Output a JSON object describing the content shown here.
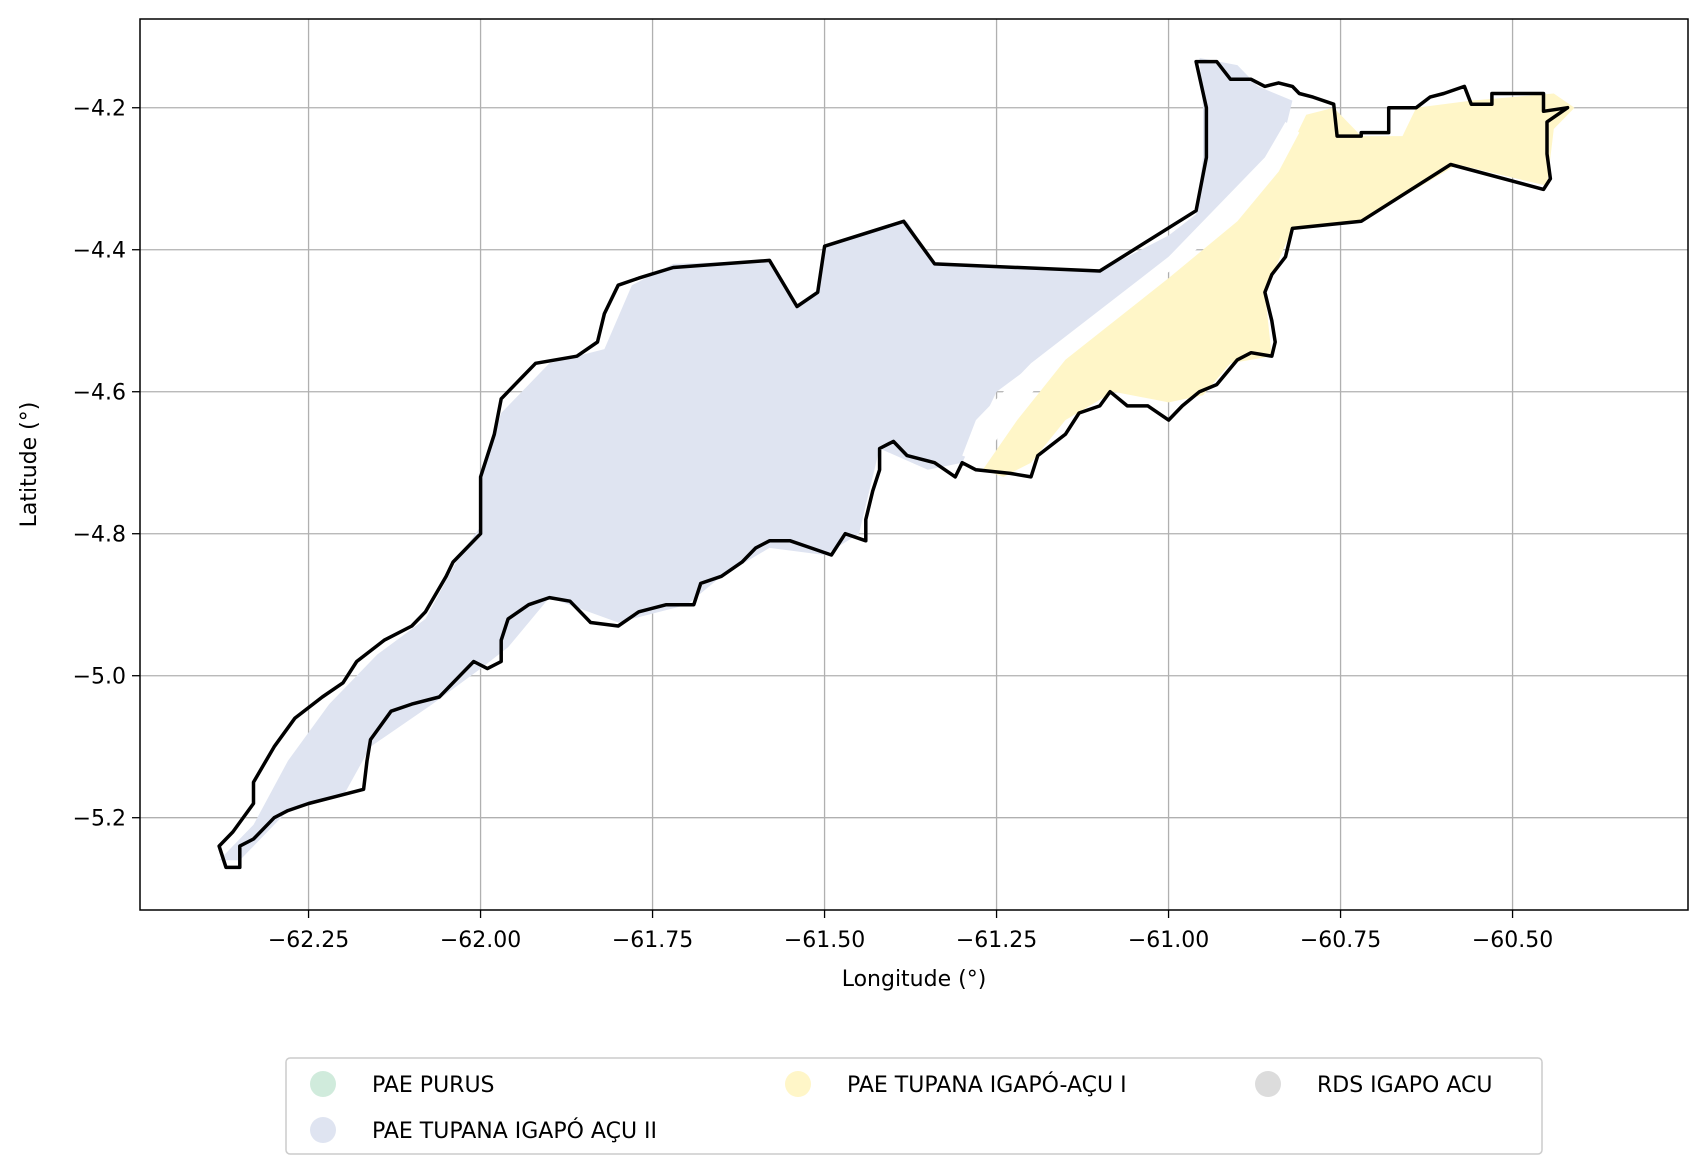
{
  "map": {
    "x_axis_label": "Longitude (°)",
    "y_axis_label": "Latitude (°)",
    "x_range": [
      -62.495,
      -60.245
    ],
    "y_range": [
      -5.33,
      -4.075
    ],
    "x_ticks": [
      -62.25,
      -62.0,
      -61.75,
      -61.5,
      -61.25,
      -61.0,
      -60.75,
      -60.5
    ],
    "x_tick_labels": [
      "−62.25",
      "−62.00",
      "−61.75",
      "−61.50",
      "−61.25",
      "−61.00",
      "−60.75",
      "−60.50"
    ],
    "y_ticks": [
      -4.2,
      -4.4,
      -4.6,
      -4.8,
      -5.0,
      -5.2
    ],
    "y_tick_labels": [
      "−4.2",
      "−4.4",
      "−4.6",
      "−4.8",
      "−5.0",
      "−5.2"
    ],
    "grid": true,
    "colors": {
      "pae_purus": "#d0ebdc",
      "pae_tupana_igapo_acu_ii": "#dfe4f1",
      "pae_tupana_igapo_acu_i": "#fff6c8",
      "rds_igapo_acu": "#dcdcdc",
      "outline": "#000000",
      "grid": "#b0b0b0"
    },
    "regions": [
      {
        "name": "PAE TUPANA IGAPÓ AÇU II",
        "color_key": "pae_tupana_igapo_acu_ii",
        "coords": [
          [
            -62.38,
            -5.26
          ],
          [
            -62.33,
            -5.21
          ],
          [
            -62.28,
            -5.12
          ],
          [
            -62.22,
            -5.04
          ],
          [
            -62.15,
            -4.97
          ],
          [
            -62.08,
            -4.92
          ],
          [
            -62.03,
            -4.83
          ],
          [
            -62.0,
            -4.79
          ],
          [
            -62.0,
            -4.72
          ],
          [
            -61.97,
            -4.63
          ],
          [
            -61.9,
            -4.56
          ],
          [
            -61.82,
            -4.54
          ],
          [
            -61.78,
            -4.45
          ],
          [
            -61.72,
            -4.42
          ],
          [
            -61.58,
            -4.415
          ],
          [
            -61.54,
            -4.48
          ],
          [
            -61.51,
            -4.46
          ],
          [
            -61.5,
            -4.395
          ],
          [
            -61.38,
            -4.36
          ],
          [
            -61.34,
            -4.42
          ],
          [
            -61.1,
            -4.43
          ],
          [
            -61.0,
            -4.38
          ],
          [
            -60.96,
            -4.35
          ],
          [
            -60.95,
            -4.27
          ],
          [
            -60.95,
            -4.2
          ],
          [
            -60.955,
            -4.13
          ],
          [
            -60.9,
            -4.14
          ],
          [
            -60.87,
            -4.17
          ],
          [
            -60.82,
            -4.19
          ],
          [
            -60.84,
            -4.27
          ],
          [
            -60.9,
            -4.34
          ],
          [
            -61.05,
            -4.45
          ],
          [
            -61.18,
            -4.55
          ],
          [
            -61.25,
            -4.6
          ],
          [
            -61.3,
            -4.7
          ],
          [
            -61.35,
            -4.71
          ],
          [
            -61.42,
            -4.68
          ],
          [
            -61.44,
            -4.76
          ],
          [
            -61.45,
            -4.8
          ],
          [
            -61.5,
            -4.83
          ],
          [
            -61.58,
            -4.82
          ],
          [
            -61.65,
            -4.86
          ],
          [
            -61.7,
            -4.9
          ],
          [
            -61.8,
            -4.925
          ],
          [
            -61.9,
            -4.89
          ],
          [
            -61.96,
            -4.96
          ],
          [
            -62.0,
            -4.99
          ],
          [
            -62.07,
            -5.04
          ],
          [
            -62.16,
            -5.1
          ],
          [
            -62.2,
            -5.17
          ],
          [
            -62.28,
            -5.19
          ],
          [
            -62.32,
            -5.23
          ],
          [
            -62.35,
            -5.26
          ]
        ]
      },
      {
        "name": "PAE TUPANA IGAPÓ-AÇU I",
        "color_key": "pae_tupana_igapo_acu_i",
        "coords": [
          [
            -61.27,
            -4.71
          ],
          [
            -61.22,
            -4.64
          ],
          [
            -61.15,
            -4.555
          ],
          [
            -61.0,
            -4.44
          ],
          [
            -60.9,
            -4.36
          ],
          [
            -60.84,
            -4.29
          ],
          [
            -60.8,
            -4.21
          ],
          [
            -60.76,
            -4.2
          ],
          [
            -60.72,
            -4.24
          ],
          [
            -60.66,
            -4.24
          ],
          [
            -60.64,
            -4.2
          ],
          [
            -60.56,
            -4.19
          ],
          [
            -60.44,
            -4.18
          ],
          [
            -60.41,
            -4.2
          ],
          [
            -60.44,
            -4.23
          ],
          [
            -60.45,
            -4.31
          ],
          [
            -60.58,
            -4.28
          ],
          [
            -60.72,
            -4.36
          ],
          [
            -60.82,
            -4.37
          ],
          [
            -60.86,
            -4.46
          ],
          [
            -60.85,
            -4.55
          ],
          [
            -60.91,
            -4.56
          ],
          [
            -60.95,
            -4.605
          ],
          [
            -61.0,
            -4.615
          ],
          [
            -61.08,
            -4.6
          ],
          [
            -61.15,
            -4.64
          ],
          [
            -61.2,
            -4.7
          ],
          [
            -61.24,
            -4.72
          ]
        ]
      }
    ],
    "gap_strip": [
      [
        -61.3,
        -4.69
      ],
      [
        -61.28,
        -4.64
      ],
      [
        -61.2,
        -4.56
      ],
      [
        -61.0,
        -4.41
      ],
      [
        -60.86,
        -4.27
      ],
      [
        -60.83,
        -4.22
      ],
      [
        -60.81,
        -4.235
      ],
      [
        -60.84,
        -4.29
      ],
      [
        -60.96,
        -4.4
      ],
      [
        -61.15,
        -4.55
      ],
      [
        -61.23,
        -4.635
      ],
      [
        -61.27,
        -4.7
      ]
    ],
    "outline": [
      [
        -62.37,
        -5.27
      ],
      [
        -62.38,
        -5.24
      ],
      [
        -62.36,
        -5.22
      ],
      [
        -62.33,
        -5.18
      ],
      [
        -62.33,
        -5.15
      ],
      [
        -62.3,
        -5.1
      ],
      [
        -62.27,
        -5.06
      ],
      [
        -62.23,
        -5.03
      ],
      [
        -62.2,
        -5.01
      ],
      [
        -62.18,
        -4.98
      ],
      [
        -62.14,
        -4.95
      ],
      [
        -62.1,
        -4.93
      ],
      [
        -62.08,
        -4.91
      ],
      [
        -62.05,
        -4.86
      ],
      [
        -62.04,
        -4.84
      ],
      [
        -62.02,
        -4.82
      ],
      [
        -62.0,
        -4.8
      ],
      [
        -62.0,
        -4.76
      ],
      [
        -62.0,
        -4.72
      ],
      [
        -61.98,
        -4.66
      ],
      [
        -61.97,
        -4.61
      ],
      [
        -61.94,
        -4.58
      ],
      [
        -61.92,
        -4.56
      ],
      [
        -61.86,
        -4.55
      ],
      [
        -61.83,
        -4.53
      ],
      [
        -61.82,
        -4.49
      ],
      [
        -61.8,
        -4.45
      ],
      [
        -61.77,
        -4.44
      ],
      [
        -61.72,
        -4.425
      ],
      [
        -61.58,
        -4.415
      ],
      [
        -61.54,
        -4.48
      ],
      [
        -61.51,
        -4.46
      ],
      [
        -61.5,
        -4.395
      ],
      [
        -61.385,
        -4.36
      ],
      [
        -61.34,
        -4.42
      ],
      [
        -61.1,
        -4.43
      ],
      [
        -60.96,
        -4.345
      ],
      [
        -60.945,
        -4.27
      ],
      [
        -60.945,
        -4.2
      ],
      [
        -60.96,
        -4.135
      ],
      [
        -60.93,
        -4.135
      ],
      [
        -60.91,
        -4.16
      ],
      [
        -60.88,
        -4.16
      ],
      [
        -60.86,
        -4.17
      ],
      [
        -60.84,
        -4.165
      ],
      [
        -60.82,
        -4.17
      ],
      [
        -60.81,
        -4.18
      ],
      [
        -60.79,
        -4.185
      ],
      [
        -60.76,
        -4.195
      ],
      [
        -60.755,
        -4.24
      ],
      [
        -60.72,
        -4.24
      ],
      [
        -60.72,
        -4.235
      ],
      [
        -60.68,
        -4.235
      ],
      [
        -60.68,
        -4.2
      ],
      [
        -60.64,
        -4.2
      ],
      [
        -60.62,
        -4.185
      ],
      [
        -60.6,
        -4.18
      ],
      [
        -60.57,
        -4.17
      ],
      [
        -60.56,
        -4.195
      ],
      [
        -60.53,
        -4.195
      ],
      [
        -60.53,
        -4.18
      ],
      [
        -60.455,
        -4.18
      ],
      [
        -60.455,
        -4.205
      ],
      [
        -60.42,
        -4.2
      ],
      [
        -60.45,
        -4.22
      ],
      [
        -60.45,
        -4.265
      ],
      [
        -60.445,
        -4.3
      ],
      [
        -60.455,
        -4.315
      ],
      [
        -60.59,
        -4.28
      ],
      [
        -60.72,
        -4.36
      ],
      [
        -60.82,
        -4.37
      ],
      [
        -60.83,
        -4.41
      ],
      [
        -60.85,
        -4.435
      ],
      [
        -60.86,
        -4.46
      ],
      [
        -60.85,
        -4.5
      ],
      [
        -60.845,
        -4.53
      ],
      [
        -60.85,
        -4.55
      ],
      [
        -60.88,
        -4.545
      ],
      [
        -60.9,
        -4.555
      ],
      [
        -60.93,
        -4.59
      ],
      [
        -60.955,
        -4.6
      ],
      [
        -60.98,
        -4.62
      ],
      [
        -61.0,
        -4.64
      ],
      [
        -61.03,
        -4.62
      ],
      [
        -61.06,
        -4.62
      ],
      [
        -61.085,
        -4.6
      ],
      [
        -61.1,
        -4.62
      ],
      [
        -61.13,
        -4.63
      ],
      [
        -61.15,
        -4.66
      ],
      [
        -61.19,
        -4.69
      ],
      [
        -61.2,
        -4.72
      ],
      [
        -61.23,
        -4.715
      ],
      [
        -61.28,
        -4.71
      ],
      [
        -61.3,
        -4.7
      ],
      [
        -61.31,
        -4.72
      ],
      [
        -61.34,
        -4.7
      ],
      [
        -61.38,
        -4.69
      ],
      [
        -61.4,
        -4.67
      ],
      [
        -61.42,
        -4.68
      ],
      [
        -61.42,
        -4.71
      ],
      [
        -61.43,
        -4.74
      ],
      [
        -61.44,
        -4.78
      ],
      [
        -61.44,
        -4.81
      ],
      [
        -61.47,
        -4.8
      ],
      [
        -61.49,
        -4.83
      ],
      [
        -61.52,
        -4.82
      ],
      [
        -61.55,
        -4.81
      ],
      [
        -61.58,
        -4.81
      ],
      [
        -61.6,
        -4.82
      ],
      [
        -61.62,
        -4.84
      ],
      [
        -61.65,
        -4.86
      ],
      [
        -61.68,
        -4.87
      ],
      [
        -61.69,
        -4.9
      ],
      [
        -61.73,
        -4.9
      ],
      [
        -61.77,
        -4.91
      ],
      [
        -61.8,
        -4.93
      ],
      [
        -61.84,
        -4.925
      ],
      [
        -61.85,
        -4.915
      ],
      [
        -61.87,
        -4.895
      ],
      [
        -61.9,
        -4.89
      ],
      [
        -61.93,
        -4.9
      ],
      [
        -61.96,
        -4.92
      ],
      [
        -61.97,
        -4.95
      ],
      [
        -61.97,
        -4.98
      ],
      [
        -61.99,
        -4.99
      ],
      [
        -62.01,
        -4.98
      ],
      [
        -62.03,
        -5.0
      ],
      [
        -62.06,
        -5.03
      ],
      [
        -62.1,
        -5.04
      ],
      [
        -62.13,
        -5.05
      ],
      [
        -62.16,
        -5.09
      ],
      [
        -62.165,
        -5.12
      ],
      [
        -62.17,
        -5.16
      ],
      [
        -62.21,
        -5.17
      ],
      [
        -62.25,
        -5.18
      ],
      [
        -62.28,
        -5.19
      ],
      [
        -62.3,
        -5.2
      ],
      [
        -62.33,
        -5.23
      ],
      [
        -62.35,
        -5.24
      ],
      [
        -62.35,
        -5.27
      ]
    ],
    "legend": {
      "items": [
        {
          "label": "PAE PURUS",
          "color_key": "pae_purus"
        },
        {
          "label": "PAE TUPANA IGAPÓ AÇU II",
          "color_key": "pae_tupana_igapo_acu_ii"
        },
        {
          "label": "PAE TUPANA IGAPÓ-AÇU I",
          "color_key": "pae_tupana_igapo_acu_i"
        },
        {
          "label": "RDS IGAPO ACU",
          "color_key": "rds_igapo_acu"
        }
      ]
    }
  }
}
